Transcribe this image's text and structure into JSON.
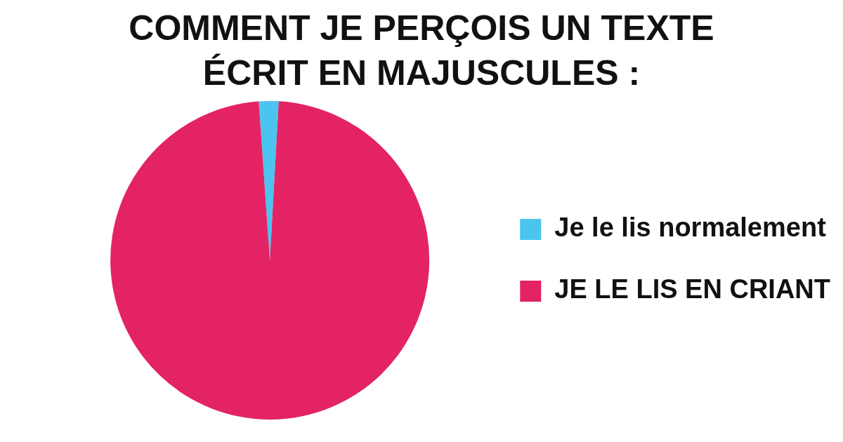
{
  "chart_data": {
    "type": "pie",
    "title": "COMMENT JE PERÇOIS UN TEXTE ÉCRIT EN MAJUSCULES :",
    "categories": [
      "Je le lis normalement",
      "JE LE LIS EN CRIANT"
    ],
    "values": [
      2,
      98
    ],
    "colors": [
      "#4bc4ef",
      "#e32363"
    ],
    "legend": "right"
  }
}
